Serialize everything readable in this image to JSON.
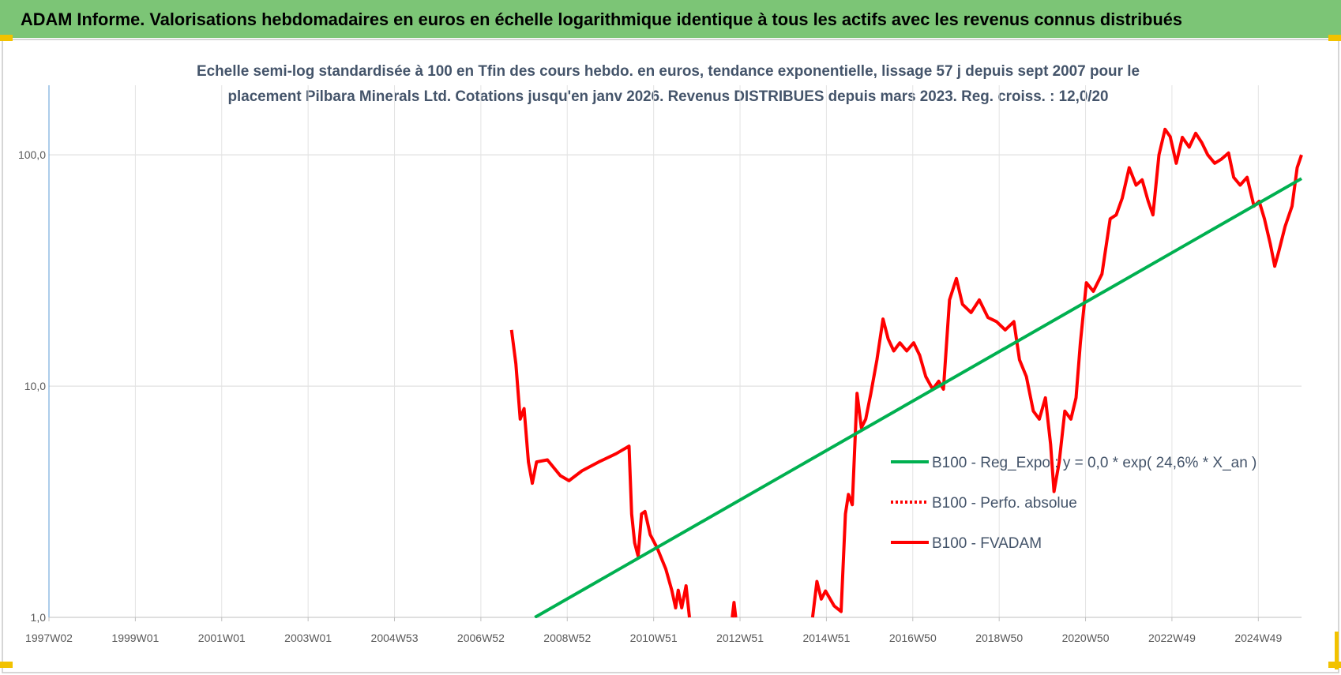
{
  "chart_data": {
    "type": "line",
    "title": "ADAM Informe. Valorisations hebdomadaires en euros en échelle logarithmique identique à tous les actifs avec les revenus connus distribués",
    "subtitle_lines": [
      "Echelle semi-log standardisée à 100 en Tfin des cours hebdo. en euros, tendance exponentielle, lissage 57 j depuis sept 2007 pour le",
      "placement Pilbara Minerals Ltd. Cotations jusqu'en janv 2026. Revenus DISTRIBUES depuis mars 2023. Reg. croiss. : 12,0/20"
    ],
    "y_scale": "log",
    "grid": true,
    "legend_position": "center right",
    "xlim": [
      1997.0,
      2026.0
    ],
    "xticks": [
      {
        "value": 1997.0,
        "label": "1997W02"
      },
      {
        "value": 1999.0,
        "label": "1999W01"
      },
      {
        "value": 2001.0,
        "label": "2001W01"
      },
      {
        "value": 2003.0,
        "label": "2003W01"
      },
      {
        "value": 2005.0,
        "label": "2004W53"
      },
      {
        "value": 2007.0,
        "label": "2006W52"
      },
      {
        "value": 2009.0,
        "label": "2008W52"
      },
      {
        "value": 2011.0,
        "label": "2010W51"
      },
      {
        "value": 2013.0,
        "label": "2012W51"
      },
      {
        "value": 2015.0,
        "label": "2014W51"
      },
      {
        "value": 2017.0,
        "label": "2016W50"
      },
      {
        "value": 2019.0,
        "label": "2018W50"
      },
      {
        "value": 2021.0,
        "label": "2020W50"
      },
      {
        "value": 2023.0,
        "label": "2022W49"
      },
      {
        "value": 2025.0,
        "label": "2024W49"
      }
    ],
    "ylim": [
      1,
      200
    ],
    "yticks": [
      {
        "value": 1,
        "label": "1,0"
      },
      {
        "value": 10,
        "label": "10,0"
      },
      {
        "value": 100,
        "label": "100,0"
      }
    ],
    "series": [
      {
        "name": "B100 - Reg_Expo : y = 0,0 * exp( 24,6% *  X_an )",
        "color": "#00b050",
        "dash": "solid",
        "x": [
          2008.25,
          2026.0
        ],
        "values": [
          1.0,
          79
        ]
      },
      {
        "name": "B100 - Perfo. absolue",
        "color": "#ff0000",
        "dash": "dotted",
        "x": [],
        "values": []
      },
      {
        "name": "B100 - FVADAM",
        "color": "#ff0000",
        "dash": "solid",
        "x": [
          2007.71,
          2007.81,
          2007.91,
          2008.0,
          2008.1,
          2008.19,
          2008.29,
          2008.54,
          2008.84,
          2009.04,
          2009.34,
          2009.73,
          2010.13,
          2010.43,
          2010.49,
          2010.56,
          2010.64,
          2010.72,
          2010.8,
          2010.92,
          2011.08,
          2011.28,
          2011.42,
          2011.51,
          2011.57,
          2011.65,
          2011.75,
          2011.83,
          2012.3,
          2012.82,
          2012.86,
          2012.9,
          2013.8,
          2014.68,
          2014.78,
          2014.88,
          2014.98,
          2015.18,
          2015.34,
          2015.44,
          2015.51,
          2015.6,
          2015.71,
          2015.81,
          2015.91,
          2016.03,
          2016.17,
          2016.31,
          2016.43,
          2016.56,
          2016.7,
          2016.86,
          2017.02,
          2017.16,
          2017.3,
          2017.46,
          2017.6,
          2017.71,
          2017.85,
          2018.01,
          2018.15,
          2018.35,
          2018.54,
          2018.74,
          2018.94,
          2019.14,
          2019.34,
          2019.47,
          2019.63,
          2019.79,
          2019.93,
          2020.07,
          2020.19,
          2020.27,
          2020.39,
          2020.52,
          2020.66,
          2020.78,
          2020.88,
          2021.02,
          2021.18,
          2021.38,
          2021.57,
          2021.71,
          2021.85,
          2022.01,
          2022.17,
          2022.31,
          2022.45,
          2022.56,
          2022.7,
          2022.84,
          2022.96,
          2023.1,
          2023.24,
          2023.4,
          2023.55,
          2023.69,
          2023.83,
          2023.99,
          2024.15,
          2024.31,
          2024.43,
          2024.58,
          2024.74,
          2024.9,
          2025.02,
          2025.14,
          2025.28,
          2025.38,
          2025.47,
          2025.62,
          2025.78,
          2025.9,
          2026.0
        ],
        "values": [
          17.5,
          12.5,
          7.2,
          8.0,
          4.7,
          3.8,
          4.7,
          4.8,
          4.1,
          3.9,
          4.3,
          4.7,
          5.1,
          5.5,
          2.8,
          2.1,
          1.84,
          2.8,
          2.87,
          2.28,
          2.0,
          1.62,
          1.31,
          1.1,
          1.31,
          1.1,
          1.37,
          1.0,
          null,
          1.0,
          1.16,
          1.0,
          null,
          1.0,
          1.43,
          1.2,
          1.3,
          1.12,
          1.06,
          2.8,
          3.4,
          3.07,
          9.3,
          6.6,
          7.2,
          9.3,
          13,
          19.5,
          16,
          14.2,
          15.4,
          14.2,
          15.4,
          13.6,
          11,
          9.7,
          10.5,
          9.7,
          23.6,
          29.2,
          22.6,
          20.8,
          23.6,
          19.8,
          19,
          17.5,
          19,
          13,
          11,
          7.8,
          7.2,
          8.9,
          5.6,
          3.5,
          4.7,
          7.8,
          7.2,
          8.9,
          15.4,
          28,
          25.7,
          30.5,
          52.9,
          55,
          65,
          88,
          74,
          78,
          63,
          55,
          100,
          129,
          120,
          92,
          119,
          108,
          124,
          113,
          100,
          92,
          96,
          102,
          80,
          74,
          80,
          60,
          63,
          53,
          41,
          33,
          38,
          49,
          60,
          88,
          100
        ]
      }
    ]
  }
}
